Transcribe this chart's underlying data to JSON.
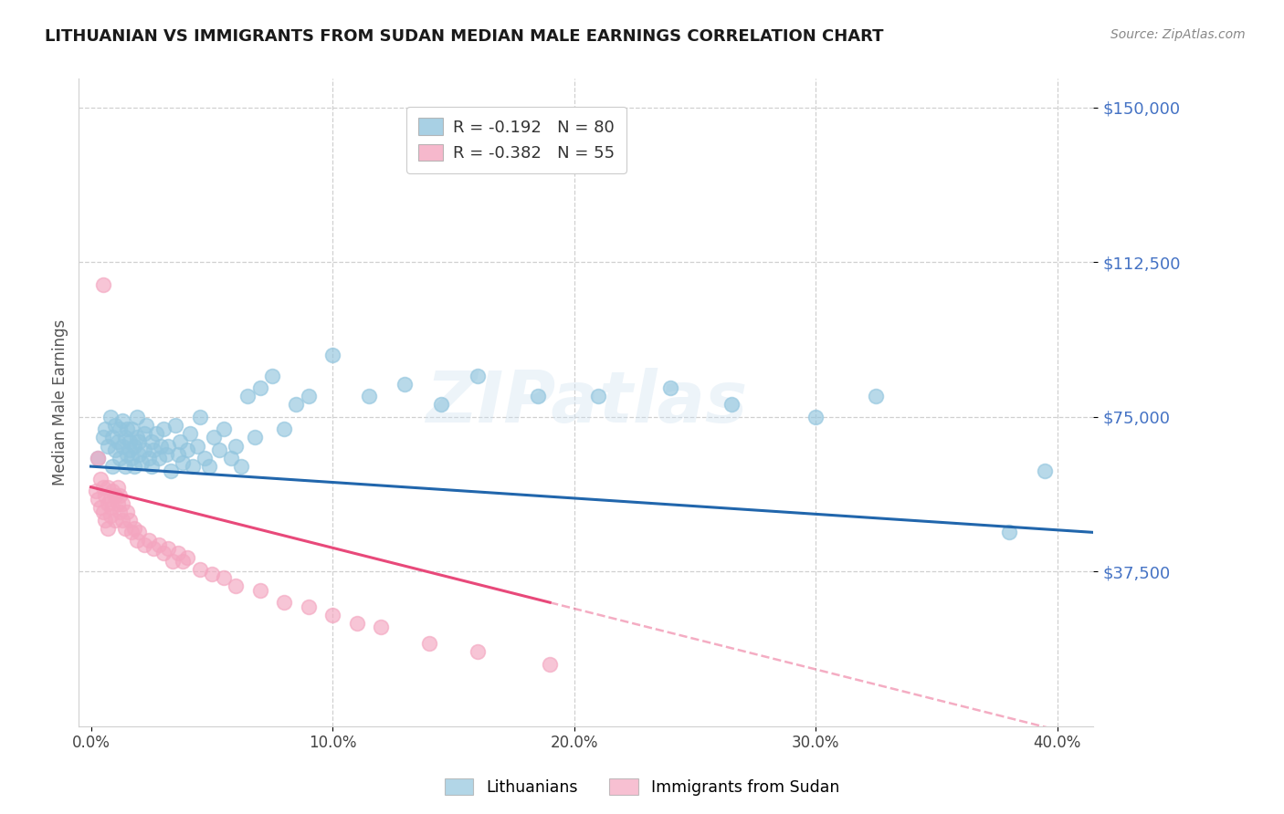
{
  "title": "LITHUANIAN VS IMMIGRANTS FROM SUDAN MEDIAN MALE EARNINGS CORRELATION CHART",
  "source": "Source: ZipAtlas.com",
  "ylabel": "Median Male Earnings",
  "xlabel_ticks": [
    "0.0%",
    "10.0%",
    "20.0%",
    "30.0%",
    "40.0%"
  ],
  "xlabel_vals": [
    0.0,
    0.1,
    0.2,
    0.3,
    0.4
  ],
  "ytick_labels": [
    "$37,500",
    "$75,000",
    "$112,500",
    "$150,000"
  ],
  "ytick_vals": [
    37500,
    75000,
    112500,
    150000
  ],
  "ylim": [
    0,
    157000
  ],
  "xlim": [
    -0.005,
    0.415
  ],
  "legend_blue_text_r": "R = -0.192",
  "legend_blue_text_n": "N = 80",
  "legend_pink_text_r": "R = -0.382",
  "legend_pink_text_n": "N = 55",
  "blue_color": "#92c5de",
  "pink_color": "#f4a6c0",
  "trendline_blue_color": "#2166ac",
  "trendline_pink_color": "#e8497a",
  "watermark": "ZIPatlas",
  "blue_scatter_x": [
    0.003,
    0.005,
    0.006,
    0.007,
    0.008,
    0.009,
    0.009,
    0.01,
    0.01,
    0.011,
    0.012,
    0.012,
    0.013,
    0.013,
    0.014,
    0.014,
    0.015,
    0.015,
    0.016,
    0.016,
    0.017,
    0.017,
    0.018,
    0.018,
    0.019,
    0.019,
    0.02,
    0.02,
    0.021,
    0.022,
    0.022,
    0.023,
    0.024,
    0.025,
    0.025,
    0.026,
    0.027,
    0.028,
    0.029,
    0.03,
    0.031,
    0.032,
    0.033,
    0.035,
    0.036,
    0.037,
    0.038,
    0.04,
    0.041,
    0.042,
    0.044,
    0.045,
    0.047,
    0.049,
    0.051,
    0.053,
    0.055,
    0.058,
    0.06,
    0.062,
    0.065,
    0.068,
    0.07,
    0.075,
    0.08,
    0.085,
    0.09,
    0.1,
    0.115,
    0.13,
    0.145,
    0.16,
    0.185,
    0.21,
    0.24,
    0.265,
    0.3,
    0.325,
    0.38,
    0.395
  ],
  "blue_scatter_y": [
    65000,
    70000,
    72000,
    68000,
    75000,
    63000,
    70000,
    67000,
    73000,
    69000,
    65000,
    72000,
    68000,
    74000,
    70000,
    63000,
    66000,
    72000,
    67000,
    69000,
    65000,
    72000,
    68000,
    63000,
    70000,
    75000,
    66000,
    69000,
    64000,
    71000,
    67000,
    73000,
    65000,
    69000,
    63000,
    67000,
    71000,
    65000,
    68000,
    72000,
    66000,
    68000,
    62000,
    73000,
    66000,
    69000,
    64000,
    67000,
    71000,
    63000,
    68000,
    75000,
    65000,
    63000,
    70000,
    67000,
    72000,
    65000,
    68000,
    63000,
    80000,
    70000,
    82000,
    85000,
    72000,
    78000,
    80000,
    90000,
    80000,
    83000,
    78000,
    85000,
    80000,
    80000,
    82000,
    78000,
    75000,
    80000,
    47000,
    62000
  ],
  "pink_scatter_x": [
    0.002,
    0.003,
    0.004,
    0.004,
    0.005,
    0.005,
    0.006,
    0.006,
    0.007,
    0.007,
    0.007,
    0.008,
    0.008,
    0.009,
    0.009,
    0.01,
    0.01,
    0.011,
    0.011,
    0.012,
    0.012,
    0.013,
    0.013,
    0.014,
    0.015,
    0.016,
    0.017,
    0.018,
    0.019,
    0.02,
    0.022,
    0.024,
    0.026,
    0.028,
    0.03,
    0.032,
    0.034,
    0.036,
    0.038,
    0.04,
    0.045,
    0.05,
    0.055,
    0.06,
    0.07,
    0.08,
    0.09,
    0.1,
    0.11,
    0.12,
    0.14,
    0.16,
    0.19,
    0.005,
    0.003
  ],
  "pink_scatter_y": [
    57000,
    55000,
    60000,
    53000,
    58000,
    52000,
    56000,
    50000,
    54000,
    58000,
    48000,
    55000,
    51000,
    57000,
    53000,
    56000,
    50000,
    54000,
    58000,
    52000,
    56000,
    50000,
    54000,
    48000,
    52000,
    50000,
    47000,
    48000,
    45000,
    47000,
    44000,
    45000,
    43000,
    44000,
    42000,
    43000,
    40000,
    42000,
    40000,
    41000,
    38000,
    37000,
    36000,
    34000,
    33000,
    30000,
    29000,
    27000,
    25000,
    24000,
    20000,
    18000,
    15000,
    107000,
    65000
  ]
}
